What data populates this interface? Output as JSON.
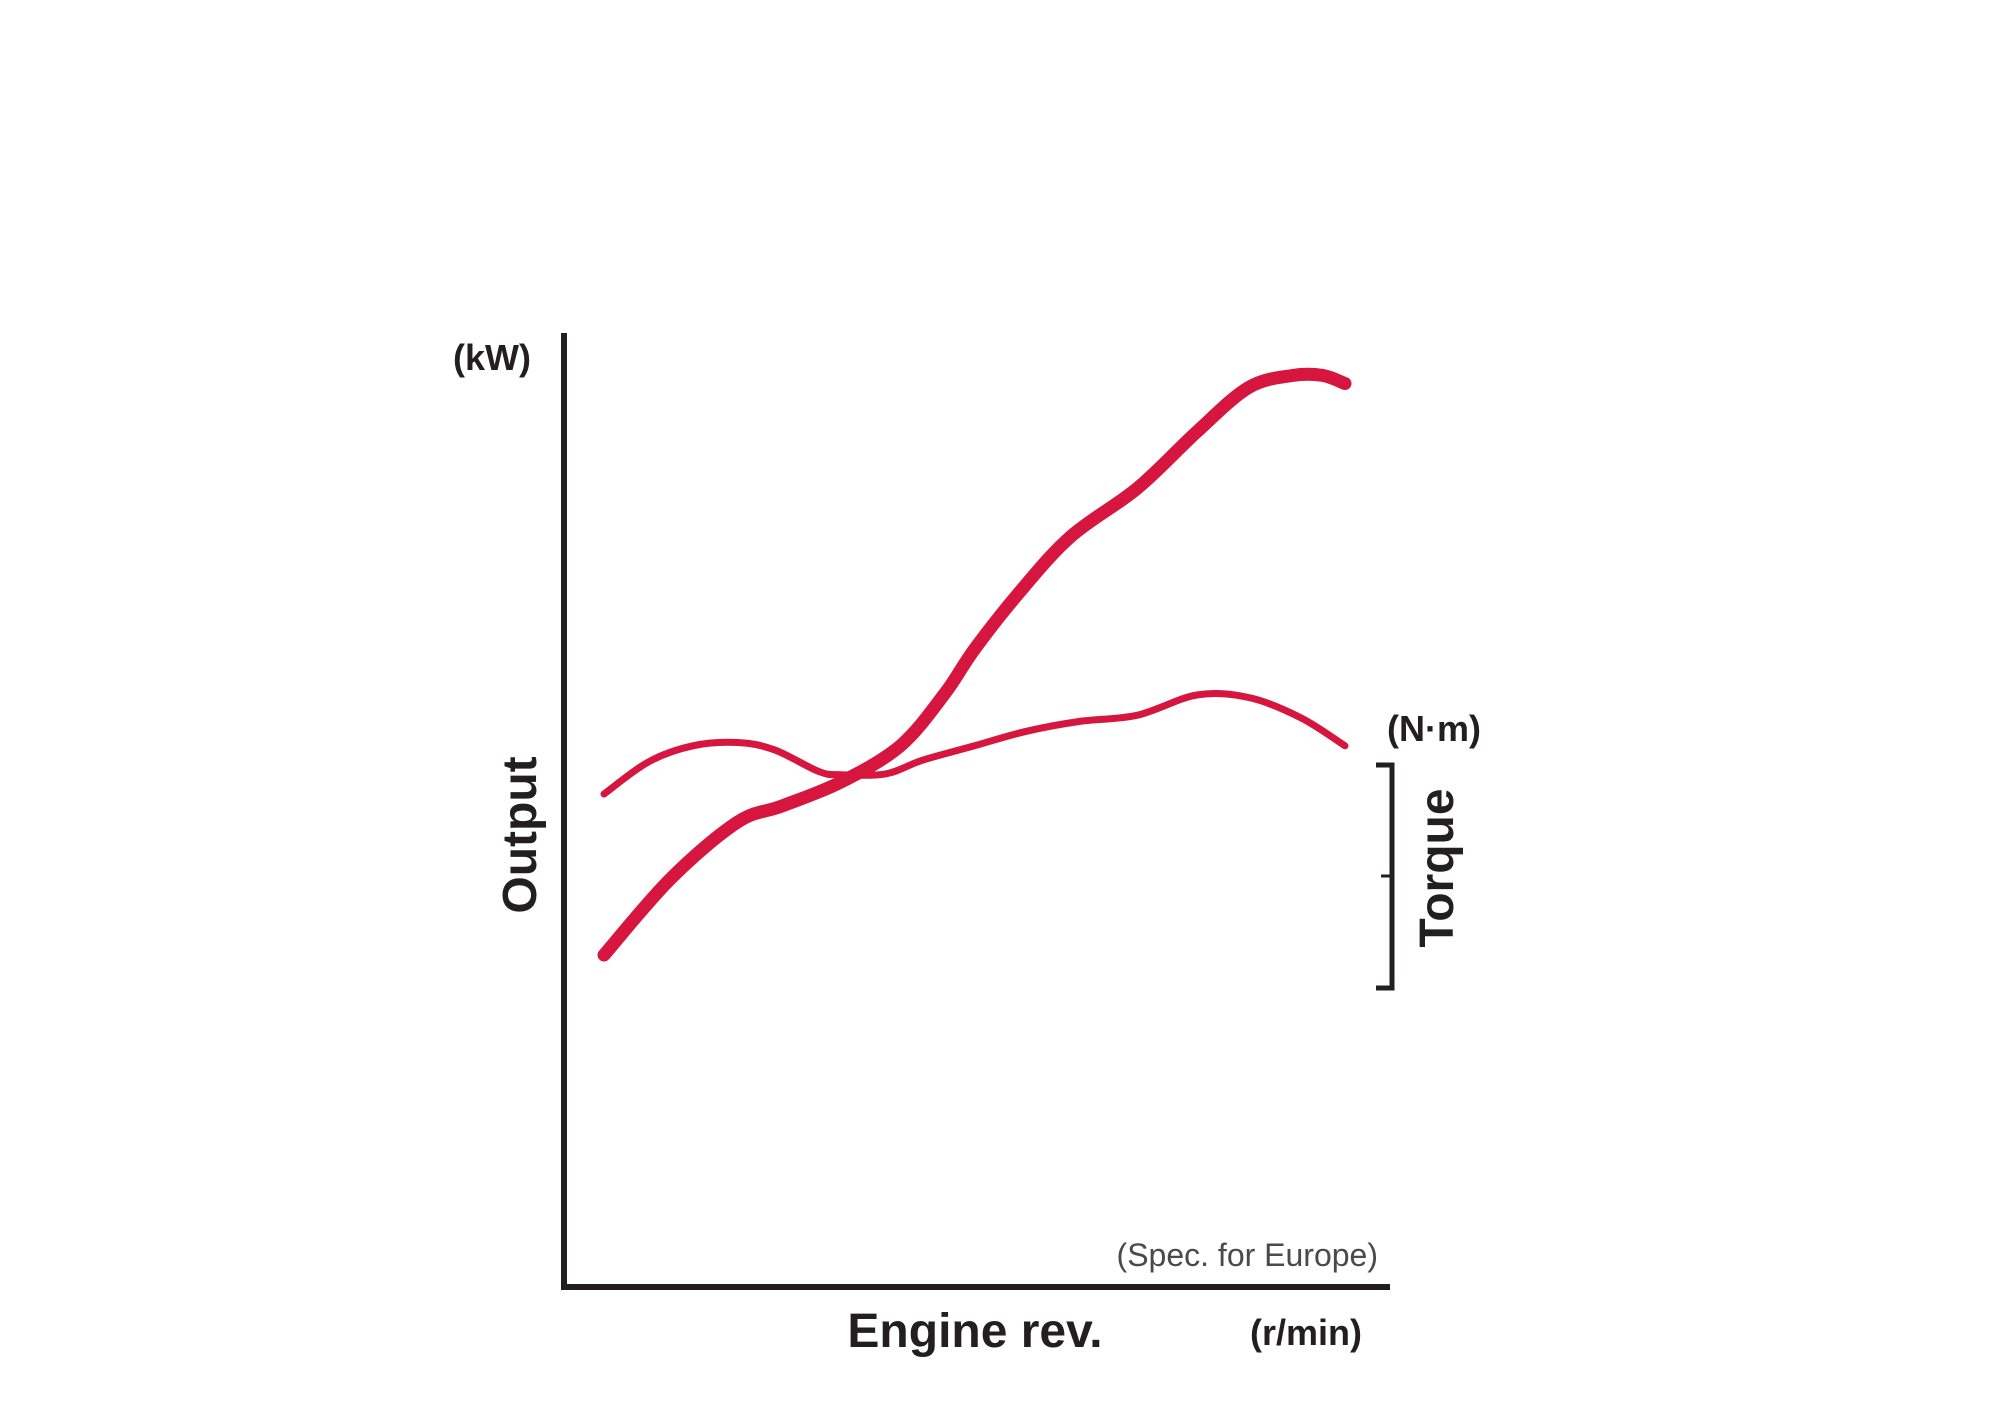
{
  "chart_data": {
    "type": "line",
    "title": "",
    "xlabel": "Engine rev.",
    "x_unit": "(r/min)",
    "ylabel": "Output",
    "y_unit": "(kW)",
    "y2label": "Torque",
    "y2_unit": "(N·m)",
    "note": "(Spec. for Europe)",
    "xlim": [
      0,
      100
    ],
    "ylim": [
      0,
      100
    ],
    "grid": false,
    "line_color": "#d6163f",
    "series": [
      {
        "name": "",
        "role": "output",
        "x": [
          0,
          9,
          18,
          24,
          32,
          40,
          46,
          50,
          56,
          63,
          72,
          80,
          87,
          93,
          97,
          100
        ],
        "y": [
          19,
          28.5,
          35.5,
          37.5,
          40.5,
          45,
          51.5,
          57,
          64,
          71,
          77,
          84,
          89.5,
          91,
          91,
          90
        ]
      },
      {
        "name": "",
        "role": "torque",
        "x": [
          0,
          6,
          12,
          18,
          23,
          29,
          32,
          38,
          43,
          50,
          57,
          64,
          72,
          80,
          87,
          94,
          100
        ],
        "y": [
          39,
          43,
          45,
          45.4,
          44.5,
          41.8,
          41.4,
          41.5,
          43.2,
          45,
          46.8,
          48,
          48.8,
          51.3,
          51,
          48.5,
          45
        ]
      }
    ]
  }
}
